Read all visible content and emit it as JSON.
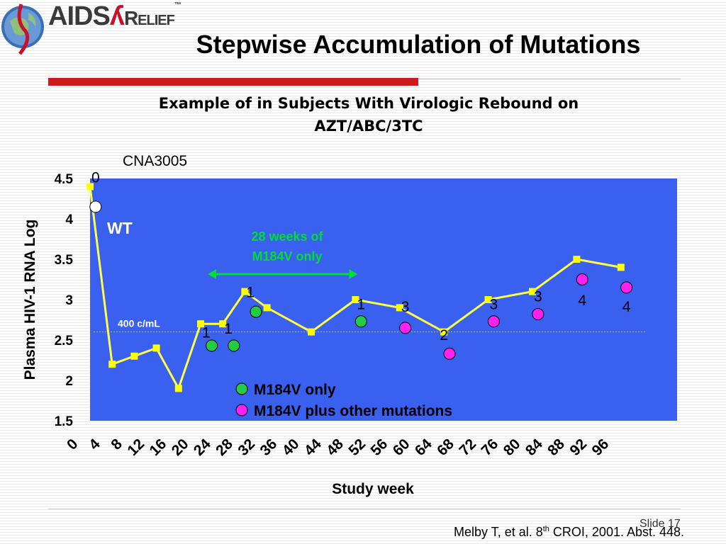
{
  "header": {
    "brand_prefix": "AIDS",
    "brand_suffix": "Relief",
    "slide_title": "Stepwise Accumulation of Mutations"
  },
  "chart_title_line1": "Example of in Subjects With Virologic Rebound on",
  "chart_title_line2": "AZT/ABC/3TC",
  "study_id": "CNA3005",
  "footer": {
    "citation_pre": "Melby T, et al.  8",
    "citation_sup": "th",
    "citation_post": " CROI, 2001. Abst. 448.",
    "slide_number": "Slide 17"
  },
  "colors": {
    "plot_bg": "#3a60f0",
    "line": "#ffff44",
    "marker": "#ffff00",
    "m184v_only": "#22cc44",
    "m184v_plus": "#ff22ee",
    "wt": "#ffffff",
    "arrow": "#00dd33"
  },
  "chart_data": {
    "type": "line",
    "xlabel": "Study week",
    "ylabel": "Plasma HIV-1 RNA Log",
    "ylim": [
      1.5,
      4.5
    ],
    "y_ticks": [
      "1.5",
      "2",
      "2.5",
      "3",
      "3.5",
      "4",
      "4.5"
    ],
    "x_ticks": [
      "0",
      "4",
      "8",
      "12",
      "16",
      "20",
      "24",
      "28",
      "32",
      "36",
      "40",
      "44",
      "48",
      "52",
      "56",
      "60",
      "64",
      "68",
      "72",
      "76",
      "80",
      "84",
      "88",
      "92",
      "96"
    ],
    "series": [
      {
        "x": [
          0,
          4,
          8,
          12,
          16,
          20,
          24,
          28,
          32,
          40,
          48,
          56,
          64,
          72,
          80,
          88,
          96
        ],
        "y": [
          4.4,
          2.2,
          2.3,
          2.4,
          1.9,
          2.7,
          2.7,
          3.1,
          2.9,
          2.6,
          3.0,
          2.9,
          2.6,
          3.0,
          3.1,
          3.5,
          3.4
        ]
      }
    ],
    "threshold": {
      "label": "400 c/mL",
      "y": 2.6
    },
    "genotype_markers": [
      {
        "x": 1,
        "y": 4.15,
        "group": "wt"
      },
      {
        "x": 22,
        "y": 2.43,
        "group": "m184v_only"
      },
      {
        "x": 26,
        "y": 2.43,
        "group": "m184v_only"
      },
      {
        "x": 30,
        "y": 2.85,
        "group": "m184v_only"
      },
      {
        "x": 49,
        "y": 2.73,
        "group": "m184v_only"
      },
      {
        "x": 57,
        "y": 2.65,
        "group": "m184v_plus"
      },
      {
        "x": 65,
        "y": 2.33,
        "group": "m184v_plus"
      },
      {
        "x": 73,
        "y": 2.73,
        "group": "m184v_plus"
      },
      {
        "x": 81,
        "y": 2.82,
        "group": "m184v_plus"
      },
      {
        "x": 89,
        "y": 3.25,
        "group": "m184v_plus"
      },
      {
        "x": 97,
        "y": 3.15,
        "group": "m184v_plus"
      }
    ],
    "point_labels": [
      {
        "text": "0",
        "x": 1,
        "y": 4.52
      },
      {
        "text": "1",
        "x": 21,
        "y": 2.6
      },
      {
        "text": "1",
        "x": 25,
        "y": 2.65
      },
      {
        "text": "1",
        "x": 29,
        "y": 3.1
      },
      {
        "text": "1",
        "x": 49,
        "y": 2.95
      },
      {
        "text": "3",
        "x": 57,
        "y": 2.92
      },
      {
        "text": "2",
        "x": 64,
        "y": 2.57
      },
      {
        "text": "3",
        "x": 73,
        "y": 2.95
      },
      {
        "text": "3",
        "x": 81,
        "y": 3.05
      },
      {
        "text": "4",
        "x": 89,
        "y": 3.0
      },
      {
        "text": "4",
        "x": 97,
        "y": 2.92
      }
    ],
    "annotations": {
      "wt": "WT",
      "bracket_line1": "28 weeks of",
      "bracket_line2": "M184V only",
      "bracket_from_week": 20,
      "bracket_to_week": 48
    },
    "legend": [
      {
        "key": "m184v_only",
        "label": "M184V only"
      },
      {
        "key": "m184v_plus",
        "label": "M184V plus other mutations"
      }
    ],
    "legend_position": "bottom-center inside plot"
  }
}
